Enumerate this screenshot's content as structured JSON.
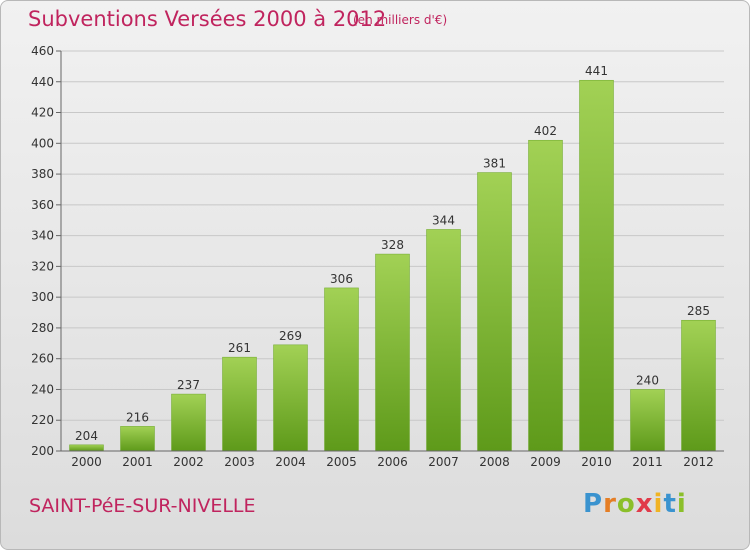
{
  "header": {
    "title": "Subventions Versées 2000 à 2012",
    "subtitle": "(en milliers d'€)"
  },
  "footer": {
    "town": "SAINT-PéE-SUR-NIVELLE",
    "logo": "Proxiti"
  },
  "colors": {
    "accent": "#c0245e",
    "bar_light": "#a2d155",
    "bar_dark": "#5e9a1a"
  },
  "chart_data": {
    "type": "bar",
    "title": "Subventions Versées 2000 à 2012",
    "subtitle": "(en milliers d'€)",
    "categories": [
      "2000",
      "2001",
      "2002",
      "2003",
      "2004",
      "2005",
      "2006",
      "2007",
      "2008",
      "2009",
      "2010",
      "2011",
      "2012"
    ],
    "values": [
      204,
      216,
      237,
      261,
      269,
      306,
      328,
      344,
      381,
      402,
      441,
      240,
      285
    ],
    "ylim": [
      200,
      460
    ],
    "yticks": [
      200,
      220,
      240,
      260,
      280,
      300,
      320,
      340,
      360,
      380,
      400,
      420,
      440,
      460
    ],
    "grid": true,
    "data_labels": true
  }
}
